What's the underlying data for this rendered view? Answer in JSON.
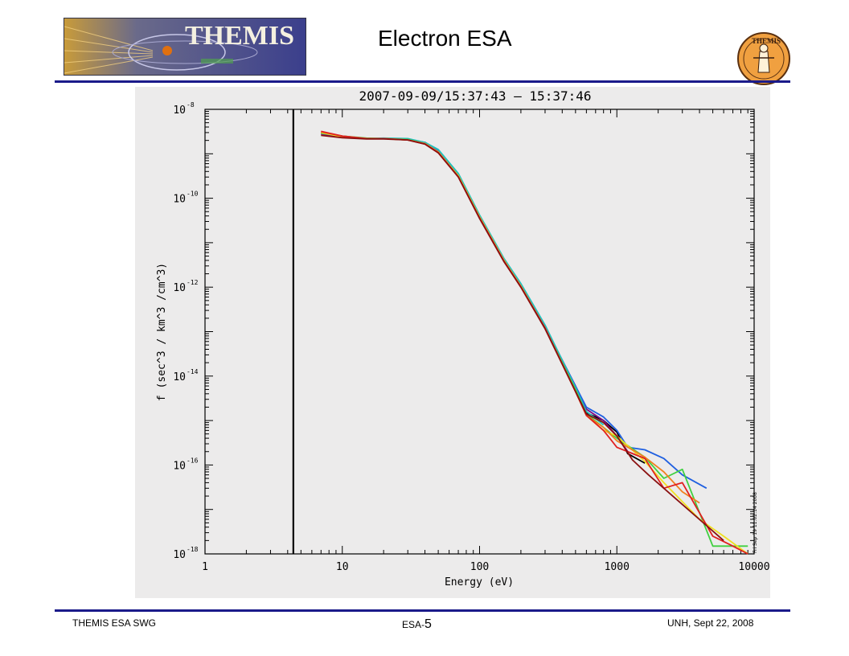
{
  "header": {
    "title": "Electron ESA",
    "logo_left_text": "THEMIS",
    "logo_right_text": "THEMIS"
  },
  "footer": {
    "left": "THEMIS ESA SWG",
    "mid_prefix": "ESA-",
    "mid_number": "5",
    "right": "UNH,   Sept 22, 2008"
  },
  "colors": {
    "rule": "#1a1a8a",
    "panel_bg": "#ecebeb"
  },
  "chart_data": {
    "type": "line",
    "title": "2007-09-09/15:37:43  –  15:37:46",
    "xlabel": "Energy  (eV)",
    "ylabel": "f (sec^3 / km^3 /cm^3)",
    "xscale": "log",
    "yscale": "log",
    "xlim": [
      1,
      10000
    ],
    "ylim": [
      1e-18,
      1e-08
    ],
    "x_ticks": [
      "1",
      "10",
      "100",
      "1000",
      "10000"
    ],
    "y_ticks": [
      {
        "base": "10",
        "exp": "-8"
      },
      {
        "base": "10",
        "exp": "-10"
      },
      {
        "base": "10",
        "exp": "-12"
      },
      {
        "base": "10",
        "exp": "-14"
      },
      {
        "base": "10",
        "exp": "-16"
      },
      {
        "base": "10",
        "exp": "-18"
      }
    ],
    "vertical_line_x": 4.4,
    "side_stamp": "Fri Sep 19 11:02:14 2008",
    "series": [
      {
        "color": "#000000",
        "x": [
          7,
          10,
          15,
          20,
          30,
          40,
          50,
          70,
          100,
          150,
          200,
          300,
          500,
          600,
          800,
          1000,
          1200,
          1600
        ],
        "y": [
          3e-09,
          2.4e-09,
          2.2e-09,
          2.2e-09,
          2.1e-09,
          1.8e-09,
          1.2e-09,
          3.5e-10,
          4e-11,
          4.2e-12,
          1.1e-12,
          1.3e-13,
          5e-15,
          1.5e-15,
          1e-15,
          5.5e-16,
          1.8e-16,
          1.1e-16
        ]
      },
      {
        "color": "#7a0a8a",
        "x": [
          7,
          10,
          15,
          20,
          30,
          40,
          50,
          70,
          100,
          150,
          200,
          300,
          500,
          600,
          800,
          1000,
          1200,
          1600
        ],
        "y": [
          2.8e-09,
          2.4e-09,
          2.2e-09,
          2.2e-09,
          2.1e-09,
          1.75e-09,
          1.15e-09,
          3.3e-10,
          3.8e-11,
          4e-12,
          1.05e-12,
          1.25e-13,
          6e-15,
          1.8e-15,
          1e-15,
          4.5e-16,
          2e-16,
          1.4e-16
        ]
      },
      {
        "color": "#1f5fe0",
        "x": [
          7,
          10,
          15,
          20,
          30,
          40,
          50,
          70,
          100,
          150,
          200,
          300,
          500,
          600,
          800,
          1000,
          1200,
          1600,
          2200,
          3000,
          4500
        ],
        "y": [
          2.9e-09,
          2.5e-09,
          2.2e-09,
          2.2e-09,
          2.15e-09,
          1.8e-09,
          1.2e-09,
          3.4e-10,
          4e-11,
          4.2e-12,
          1.1e-12,
          1.3e-13,
          6e-15,
          2e-15,
          1.2e-15,
          6e-16,
          2.5e-16,
          2.2e-16,
          1.4e-16,
          6e-17,
          3e-17
        ]
      },
      {
        "color": "#20c0c0",
        "x": [
          7,
          10,
          15,
          20,
          30,
          40,
          50,
          70,
          100,
          150,
          200,
          300,
          500,
          600,
          800
        ],
        "y": [
          3e-09,
          2.5e-09,
          2.2e-09,
          2.25e-09,
          2.2e-09,
          1.8e-09,
          1.25e-09,
          3.6e-10,
          4.2e-11,
          4.5e-12,
          1.2e-12,
          1.4e-13,
          5.5e-15,
          1.6e-15,
          8e-16
        ]
      },
      {
        "color": "#40d040",
        "x": [
          7,
          10,
          15,
          20,
          30,
          40,
          50,
          70,
          100,
          150,
          200,
          300,
          500,
          600,
          800,
          1000,
          1600,
          2200,
          3000,
          5000,
          9000
        ],
        "y": [
          2.9e-09,
          2.5e-09,
          2.25e-09,
          2.2e-09,
          2.1e-09,
          1.7e-09,
          1.1e-09,
          3.2e-10,
          3.8e-11,
          4e-12,
          1.05e-12,
          1.2e-13,
          5e-15,
          1.4e-15,
          7e-16,
          4e-16,
          1.5e-16,
          5e-17,
          8e-17,
          1.5e-18,
          1.5e-18
        ]
      },
      {
        "color": "#f0e020",
        "x": [
          7,
          10,
          15,
          20,
          30,
          40,
          50,
          70,
          100,
          150,
          200,
          300,
          500,
          600,
          800,
          1000,
          1600,
          2200,
          3000,
          4000,
          6000,
          9000
        ],
        "y": [
          3e-09,
          2.4e-09,
          2.2e-09,
          2.2e-09,
          2.05e-09,
          1.7e-09,
          1.1e-09,
          3.2e-10,
          3.8e-11,
          4.1e-12,
          1.05e-12,
          1.2e-13,
          4.5e-15,
          1.3e-15,
          6e-16,
          4.5e-16,
          1.2e-16,
          4e-17,
          1.5e-17,
          6e-18,
          2.5e-18,
          1e-18
        ]
      },
      {
        "color": "#f08020",
        "x": [
          7,
          10,
          15,
          20,
          30,
          40,
          50,
          70,
          100,
          150,
          200,
          300,
          500,
          600,
          800,
          1000,
          1600,
          2200,
          3000,
          4000
        ],
        "y": [
          3.1e-09,
          2.5e-09,
          2.2e-09,
          2.2e-09,
          2.05e-09,
          1.7e-09,
          1.1e-09,
          3.1e-10,
          3.7e-11,
          4e-12,
          1.05e-12,
          1.2e-13,
          4.5e-15,
          1.3e-15,
          7e-16,
          3.5e-16,
          1.5e-16,
          7e-17,
          2.5e-17,
          1.4e-17
        ]
      },
      {
        "color": "#e02020",
        "x": [
          7,
          10,
          15,
          20,
          30,
          40,
          50,
          70,
          100,
          150,
          200,
          300,
          500,
          600,
          800,
          1000,
          1600,
          2200,
          3000,
          5000,
          7000,
          9000
        ],
        "y": [
          3.2e-09,
          2.5e-09,
          2.2e-09,
          2.2e-09,
          2.05e-09,
          1.65e-09,
          1.05e-09,
          3e-10,
          3.6e-11,
          3.9e-12,
          1e-12,
          1.2e-13,
          4.5e-15,
          1.3e-15,
          6e-16,
          2.5e-16,
          1.4e-16,
          3e-17,
          4e-17,
          2.5e-18,
          1.5e-18,
          1e-18
        ]
      },
      {
        "color": "#8a1010",
        "x": [
          7,
          10,
          15,
          20,
          30,
          40,
          50,
          70,
          100,
          150,
          200,
          300,
          500,
          600,
          800,
          1000,
          1300,
          1700,
          6000
        ],
        "y": [
          2.6e-09,
          2.3e-09,
          2.15e-09,
          2.15e-09,
          2.05e-09,
          1.65e-09,
          1.05e-09,
          3e-10,
          3.5e-11,
          3.8e-12,
          1e-12,
          1.15e-13,
          4.5e-15,
          1.4e-15,
          9e-16,
          4.5e-16,
          1.3e-16,
          6e-17,
          2e-18
        ]
      }
    ]
  }
}
